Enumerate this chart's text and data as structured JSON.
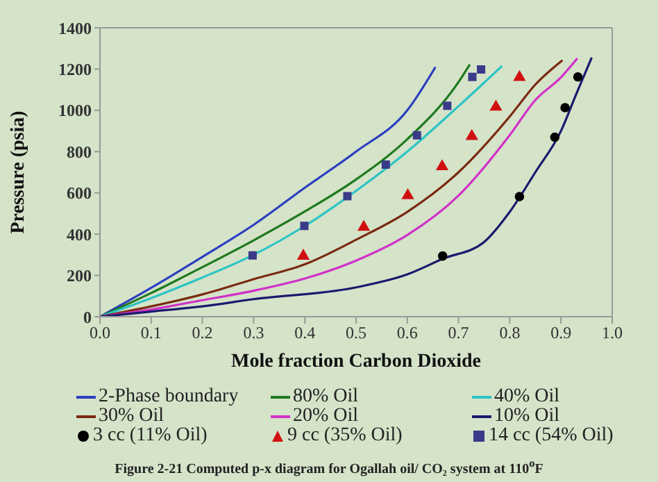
{
  "chart_data": {
    "type": "line",
    "title": "Figure 2-21 Computed p-x diagram for Ogallah oil/ CO₂ system at 110$^{o}$F",
    "xlabel": "Mole fraction Carbon Dioxide",
    "ylabel": "Pressure (psia)",
    "xlim": [
      0,
      1
    ],
    "xticks": [
      {
        "value": 0,
        "label": "0.0"
      },
      0.1,
      0.2,
      0.3,
      0.4,
      0.5,
      0.6,
      0.7,
      0.8,
      0.9,
      {
        "value": 1,
        "label": "1.0"
      }
    ],
    "ylim": [
      0,
      1400
    ],
    "yticks": [
      0,
      200,
      400,
      600,
      800,
      1000,
      1200,
      1400
    ],
    "grid": false,
    "legend": "bottom",
    "line_style": "solid",
    "series": [
      {
        "name": "2-Phase boundary",
        "marker": "none",
        "color": "#2b3fc0",
        "x": [
          0,
          0.1,
          0.2,
          0.3,
          0.4,
          0.5,
          0.6,
          0.655
        ],
        "values": [
          0,
          140,
          290,
          445,
          625,
          800,
          1000,
          1210
        ]
      },
      {
        "name": "80% Oil",
        "type": "line",
        "marker": "none",
        "color": "#1e7a1e",
        "x": [
          0,
          0.1,
          0.2,
          0.3,
          0.4,
          0.5,
          0.6,
          0.7,
          0.722
        ],
        "values": [
          0,
          115,
          240,
          370,
          510,
          665,
          860,
          1137,
          1222
        ]
      },
      {
        "name": "40% Oil",
        "type": "line",
        "marker": "none",
        "color": "#2cc4c4",
        "x": [
          0,
          0.1,
          0.2,
          0.3,
          0.4,
          0.5,
          0.6,
          0.7,
          0.785
        ],
        "values": [
          0,
          90,
          190,
          300,
          440,
          610,
          800,
          1020,
          1215
        ]
      },
      {
        "name": "30% Oil",
        "type": "line",
        "marker": "none",
        "color": "#7a2a10",
        "x": [
          0,
          0.1,
          0.2,
          0.3,
          0.4,
          0.5,
          0.6,
          0.7,
          0.8,
          0.85,
          0.903
        ],
        "values": [
          0,
          50,
          108,
          182,
          254,
          373,
          508,
          700,
          970,
          1125,
          1243
        ]
      },
      {
        "name": "20% Oil",
        "type": "line",
        "marker": "none",
        "color": "#d030c8",
        "x": [
          0,
          0.1,
          0.2,
          0.3,
          0.4,
          0.5,
          0.6,
          0.7,
          0.8,
          0.85,
          0.9,
          0.932
        ],
        "values": [
          0,
          35,
          80,
          126,
          185,
          272,
          396,
          587,
          880,
          1050,
          1160,
          1252
        ]
      },
      {
        "name": "10% Oil",
        "type": "line",
        "marker": "none",
        "color": "#1a1a6e",
        "x": [
          0,
          0.1,
          0.2,
          0.3,
          0.5,
          0.6,
          0.669,
          0.75,
          0.8,
          0.85,
          0.9,
          0.93,
          0.96
        ],
        "values": [
          0,
          25,
          50,
          85,
          142,
          205,
          280,
          362,
          508,
          700,
          900,
          1080,
          1256
        ]
      },
      {
        "name": "3 cc (11% Oil)",
        "type": "scatter",
        "marker": "circle",
        "color": "#000000",
        "x": [
          0.669,
          0.819,
          0.888,
          0.908,
          0.933
        ],
        "values": [
          294,
          582,
          870,
          1013,
          1162
        ]
      },
      {
        "name": "9 cc (35% Oil)",
        "type": "scatter",
        "marker": "triangle",
        "color": "#d01010",
        "x": [
          0.397,
          0.515,
          0.601,
          0.668,
          0.726,
          0.773,
          0.819
        ],
        "values": [
          294,
          434,
          587,
          728,
          874,
          1016,
          1160
        ]
      },
      {
        "name": "14 cc (54% Oil)",
        "type": "scatter",
        "marker": "square",
        "color": "#3a3a8a",
        "x": [
          0.298,
          0.399,
          0.483,
          0.558,
          0.619,
          0.678,
          0.727,
          0.744
        ],
        "values": [
          297,
          440,
          584,
          737,
          879,
          1022,
          1162,
          1198
        ]
      }
    ]
  }
}
